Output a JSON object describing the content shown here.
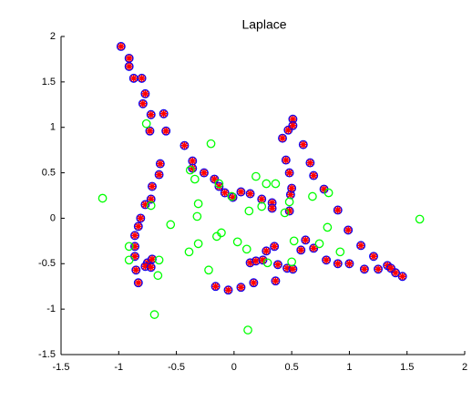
{
  "chart_data": {
    "type": "scatter",
    "title": "Laplace",
    "xlim": [
      -1.5,
      2
    ],
    "ylim": [
      -1.5,
      2
    ],
    "xticks": [
      -1.5,
      -1,
      -0.5,
      0,
      0.5,
      1,
      1.5,
      2
    ],
    "yticks": [
      -1.5,
      -1,
      -0.5,
      0,
      0.5,
      1,
      1.5,
      2
    ],
    "series": [
      {
        "color": "#0000ff",
        "marker_color": "#ff0000",
        "x": [
          -0.98,
          -0.91,
          -0.91,
          -0.87,
          -0.8,
          -0.77,
          -0.79,
          -0.72,
          -0.61,
          -0.73,
          -0.59,
          -0.43,
          -0.36,
          -0.36,
          -0.26,
          -0.17,
          -0.13,
          -0.08,
          -0.01,
          0.06,
          0.14,
          0.24,
          0.33,
          0.33,
          0.48,
          0.49,
          0.5,
          0.48,
          0.45,
          0.42,
          0.47,
          0.51,
          0.51,
          0.6,
          0.66,
          0.69,
          0.78,
          0.9,
          0.99,
          1.1,
          1.21,
          1.33,
          1.4,
          1.46,
          -0.16,
          -0.05,
          0.06,
          0.17,
          0.14,
          0.19,
          0.25,
          0.28,
          0.35,
          0.38,
          0.36,
          0.46,
          0.51,
          0.58,
          0.62,
          0.69,
          0.8,
          0.9,
          1.0,
          1.13,
          1.25,
          1.36,
          -0.65,
          -0.64,
          -0.71,
          -0.72,
          -0.77,
          -0.81,
          -0.83,
          -0.86,
          -0.86,
          -0.86,
          -0.85,
          -0.83,
          -0.75,
          -0.71,
          -0.77,
          -0.72
        ],
        "values": [
          1.89,
          1.76,
          1.67,
          1.54,
          1.54,
          1.37,
          1.26,
          1.14,
          1.15,
          0.96,
          0.96,
          0.8,
          0.63,
          0.55,
          0.5,
          0.43,
          0.35,
          0.28,
          0.23,
          0.29,
          0.27,
          0.21,
          0.17,
          0.11,
          0.08,
          0.26,
          0.33,
          0.5,
          0.64,
          0.88,
          0.97,
          1.09,
          1.02,
          0.81,
          0.61,
          0.47,
          0.32,
          0.09,
          -0.13,
          -0.3,
          -0.42,
          -0.52,
          -0.6,
          -0.64,
          -0.75,
          -0.79,
          -0.76,
          -0.71,
          -0.49,
          -0.47,
          -0.46,
          -0.36,
          -0.31,
          -0.51,
          -0.69,
          -0.55,
          -0.56,
          -0.35,
          -0.24,
          -0.33,
          -0.46,
          -0.5,
          -0.5,
          -0.56,
          -0.56,
          -0.55,
          0.48,
          0.6,
          0.35,
          0.21,
          0.15,
          0.0,
          -0.09,
          -0.19,
          -0.31,
          -0.42,
          -0.57,
          -0.71,
          -0.49,
          -0.45,
          -0.53,
          -0.54
        ]
      },
      {
        "color": "#00ff00",
        "x": [
          -1.14,
          -0.76,
          -0.72,
          -0.91,
          -0.91,
          -0.66,
          -0.65,
          -0.69,
          -0.55,
          -0.39,
          -0.38,
          -0.34,
          -0.31,
          -0.32,
          -0.31,
          -0.22,
          -0.2,
          -0.15,
          -0.11,
          -0.13,
          -0.02,
          0.03,
          0.11,
          0.13,
          0.19,
          0.24,
          0.28,
          0.36,
          0.44,
          0.48,
          0.52,
          0.5,
          0.68,
          0.81,
          0.82,
          0.74,
          0.92,
          0.29,
          1.61,
          0.12
        ],
        "values": [
          0.22,
          1.04,
          0.14,
          -0.31,
          -0.46,
          -0.63,
          -0.46,
          -1.06,
          -0.07,
          -0.37,
          0.53,
          0.43,
          0.16,
          0.02,
          -0.28,
          -0.57,
          0.82,
          -0.2,
          -0.16,
          0.38,
          0.24,
          -0.26,
          -0.34,
          0.08,
          0.46,
          0.13,
          0.38,
          0.38,
          0.06,
          0.18,
          -0.25,
          -0.48,
          0.24,
          -0.1,
          0.28,
          -0.28,
          -0.37,
          -0.49,
          -0.01,
          -1.23
        ]
      }
    ]
  }
}
